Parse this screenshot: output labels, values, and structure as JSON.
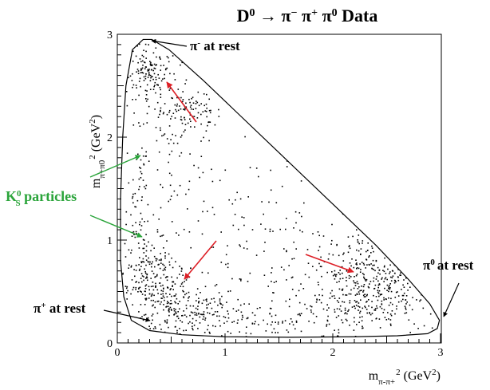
{
  "chart_data": {
    "type": "scatter",
    "title": {
      "base": "D",
      "sup": "0",
      "rest": " → π",
      "sup2": "−",
      "rest2": " π",
      "sup3": "+",
      "rest3": " π",
      "sup4": "0",
      "tail": " Data"
    },
    "xlabel": {
      "base": "m",
      "sub": "π-π+",
      "sup": "2",
      "unit": " (GeV",
      "unit_sup": "2",
      "close": ")"
    },
    "ylabel": {
      "base": "m",
      "sub": "π+π0",
      "sup": "2",
      "unit": " (GeV",
      "unit_sup": "2",
      "close": ")"
    },
    "xlim": [
      0,
      3
    ],
    "ylim": [
      0,
      3
    ],
    "x_ticks": [
      "0",
      "1",
      "2",
      "3"
    ],
    "y_ticks": [
      "0",
      "1",
      "2",
      "3"
    ],
    "grid": false,
    "annotations": {
      "pi_minus_rest": {
        "sym": "π",
        "sup": "-",
        "text": " at rest"
      },
      "pi0_rest": {
        "sym": "π",
        "sup": "0",
        "text": "at rest"
      },
      "pi_plus_rest": {
        "sym": "π",
        "sup": "+",
        "text": " at rest"
      },
      "ks": {
        "sym": "K",
        "sub": "S",
        "sup": "0",
        "text": " particles"
      }
    },
    "boundary": [
      [
        0.24,
        2.95
      ],
      [
        0.32,
        2.95
      ],
      [
        0.48,
        2.85
      ],
      [
        0.8,
        2.55
      ],
      [
        1.1,
        2.25
      ],
      [
        1.5,
        1.85
      ],
      [
        2.0,
        1.35
      ],
      [
        2.4,
        0.95
      ],
      [
        2.7,
        0.62
      ],
      [
        2.9,
        0.38
      ],
      [
        2.99,
        0.22
      ],
      [
        2.97,
        0.14
      ],
      [
        2.88,
        0.09
      ],
      [
        2.6,
        0.07
      ],
      [
        2.2,
        0.06
      ],
      [
        1.6,
        0.055
      ],
      [
        1.0,
        0.06
      ],
      [
        0.6,
        0.08
      ],
      [
        0.3,
        0.12
      ],
      [
        0.13,
        0.22
      ],
      [
        0.06,
        0.45
      ],
      [
        0.03,
        0.8
      ],
      [
        0.03,
        1.4
      ],
      [
        0.05,
        2.0
      ],
      [
        0.08,
        2.5
      ],
      [
        0.14,
        2.85
      ],
      [
        0.24,
        2.95
      ]
    ],
    "clusters": [
      {
        "cx": 0.3,
        "cy": 2.65,
        "sx": 0.12,
        "sy": 0.15,
        "n": 130
      },
      {
        "cx": 0.65,
        "cy": 2.25,
        "sx": 0.15,
        "sy": 0.1,
        "n": 100
      },
      {
        "cx": 0.3,
        "cy": 0.65,
        "sx": 0.14,
        "sy": 0.18,
        "n": 190
      },
      {
        "cx": 0.62,
        "cy": 0.35,
        "sx": 0.22,
        "sy": 0.15,
        "n": 200
      },
      {
        "cx": 2.4,
        "cy": 0.6,
        "sx": 0.3,
        "sy": 0.22,
        "n": 320
      },
      {
        "cx": 2.2,
        "cy": 0.3,
        "sx": 0.35,
        "sy": 0.12,
        "n": 100
      },
      {
        "cx": 0.2,
        "cy": 1.6,
        "sx": 0.05,
        "sy": 0.55,
        "n": 70
      },
      {
        "cx": 0.4,
        "cy": 1.9,
        "sx": 0.15,
        "sy": 0.35,
        "n": 40
      },
      {
        "cx": 1.35,
        "cy": 0.2,
        "sx": 0.45,
        "sy": 0.1,
        "n": 80
      },
      {
        "cx": 1.0,
        "cy": 1.2,
        "sx": 0.5,
        "sy": 0.6,
        "n": 110
      },
      {
        "cx": 1.5,
        "cy": 0.8,
        "sx": 0.4,
        "sy": 0.4,
        "n": 70
      }
    ],
    "arrows": {
      "red": "#dd1f26",
      "green": "#2aa43a",
      "black": "#000000"
    },
    "colors": {
      "points": "#000000",
      "text_green": "#2aa43a"
    }
  }
}
